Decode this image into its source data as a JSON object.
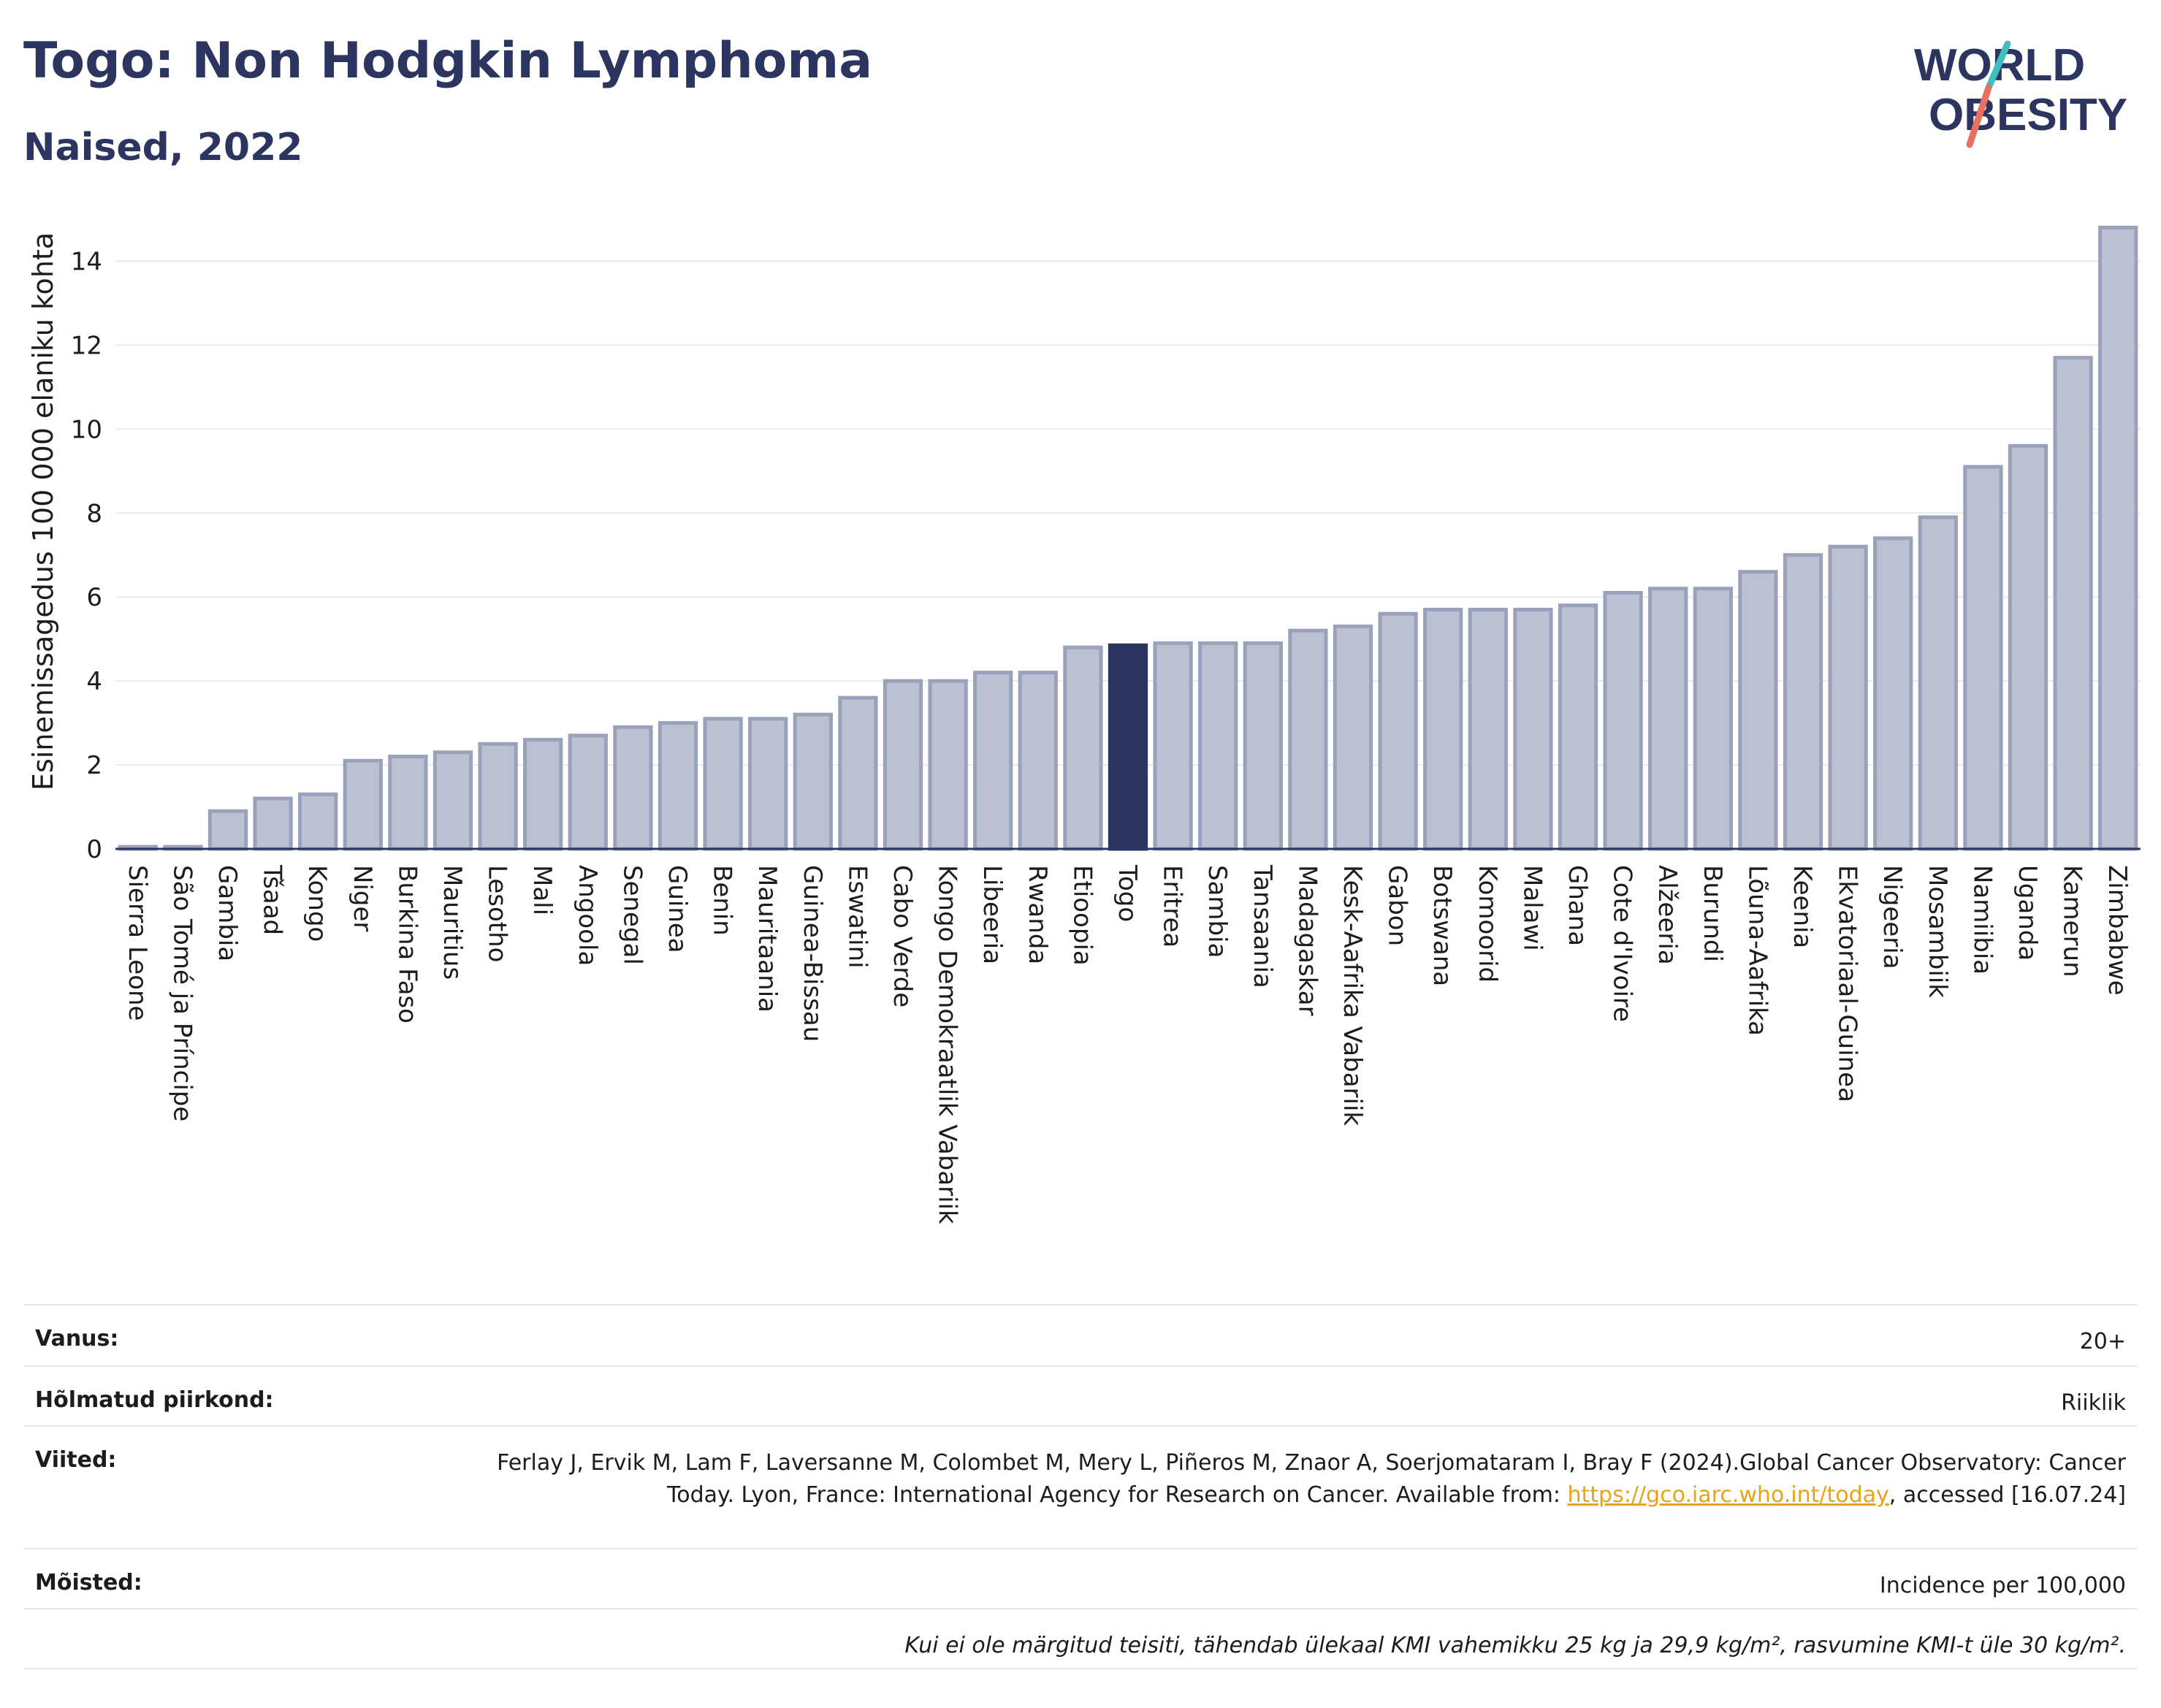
{
  "header": {
    "title": "Togo: Non Hodgkin Lymphoma",
    "subtitle": "Naised, 2022"
  },
  "logo": {
    "line1": "WORLD",
    "line2": "OBESITY",
    "colors": {
      "text": "#2b3560",
      "slash_teal": "#3fbfbf",
      "slash_coral": "#e8705f"
    }
  },
  "colors": {
    "bar": "#bcc1d1",
    "bar_border": "#9aa1ba",
    "highlight": "#2b3560",
    "grid": "#e8eaf0",
    "axis": "#2b3560"
  },
  "chart_data": {
    "type": "bar",
    "title": "Togo: Non Hodgkin Lymphoma",
    "subtitle": "Naised, 2022",
    "ylabel": "Esinemissagedus 100 000 elaniku kohta",
    "xlabel": "",
    "ylim": [
      0,
      15
    ],
    "yticks": [
      0,
      2,
      4,
      6,
      8,
      10,
      12,
      14
    ],
    "grid": true,
    "highlight": "Togo",
    "categories": [
      "Sierra Leone",
      "São Tomé ja Príncipe",
      "Gambia",
      "Tšaad",
      "Kongo",
      "Niger",
      "Burkina Faso",
      "Mauritius",
      "Lesotho",
      "Mali",
      "Angoola",
      "Senegal",
      "Guinea",
      "Benin",
      "Mauritaania",
      "Guinea-Bissau",
      "Eswatini",
      "Cabo Verde",
      "Kongo Demokraatlik Vabariik",
      "Libeeria",
      "Rwanda",
      "Etioopia",
      "Togo",
      "Eritrea",
      "Sambia",
      "Tansaania",
      "Madagaskar",
      "Kesk-Aafrika Vabariik",
      "Gabon",
      "Botswana",
      "Komoorid",
      "Malawi",
      "Ghana",
      "Cote d'Ivoire",
      "Alžeeria",
      "Burundi",
      "Lõuna-Aafrika",
      "Keenia",
      "Ekvatoriaal-Guinea",
      "Nigeeria",
      "Mosambiik",
      "Namiibia",
      "Uganda",
      "Kamerun",
      "Zimbabwe"
    ],
    "values": [
      0.05,
      0.05,
      0.9,
      1.2,
      1.3,
      2.1,
      2.2,
      2.3,
      2.5,
      2.6,
      2.7,
      2.9,
      3.0,
      3.1,
      3.1,
      3.2,
      3.6,
      4.0,
      4.0,
      4.2,
      4.2,
      4.8,
      4.85,
      4.9,
      4.9,
      4.9,
      5.2,
      5.3,
      5.6,
      5.7,
      5.7,
      5.7,
      5.8,
      6.1,
      6.2,
      6.2,
      6.6,
      7.0,
      7.2,
      7.4,
      7.9,
      9.1,
      9.6,
      11.7,
      14.8
    ]
  },
  "meta": {
    "rows": [
      {
        "key": "Vanus:",
        "value": "20+"
      },
      {
        "key": "Hõlmatud piirkond:",
        "value": "Riiklik"
      }
    ],
    "refs_key": "Viited:",
    "refs_text1": "Ferlay J, Ervik M, Lam F, Laversanne M, Colombet M, Mery L, Piñeros M, Znaor A, Soerjomataram I, Bray F (2024).Global Cancer Observatory: Cancer Today. Lyon, France: International Agency for Research on Cancer. Available from: ",
    "refs_link": "https://gco.iarc.who.int/today",
    "refs_text2": ", accessed [16.07.24]",
    "defs_key": "Mõisted:",
    "defs_value": "Incidence per 100,000",
    "note": "Kui ei ole märgitud teisiti, tähendab ülekaal KMI vahemikku 25 kg ja 29,9 kg/m², rasvumine KMI-t üle 30 kg/m²."
  }
}
